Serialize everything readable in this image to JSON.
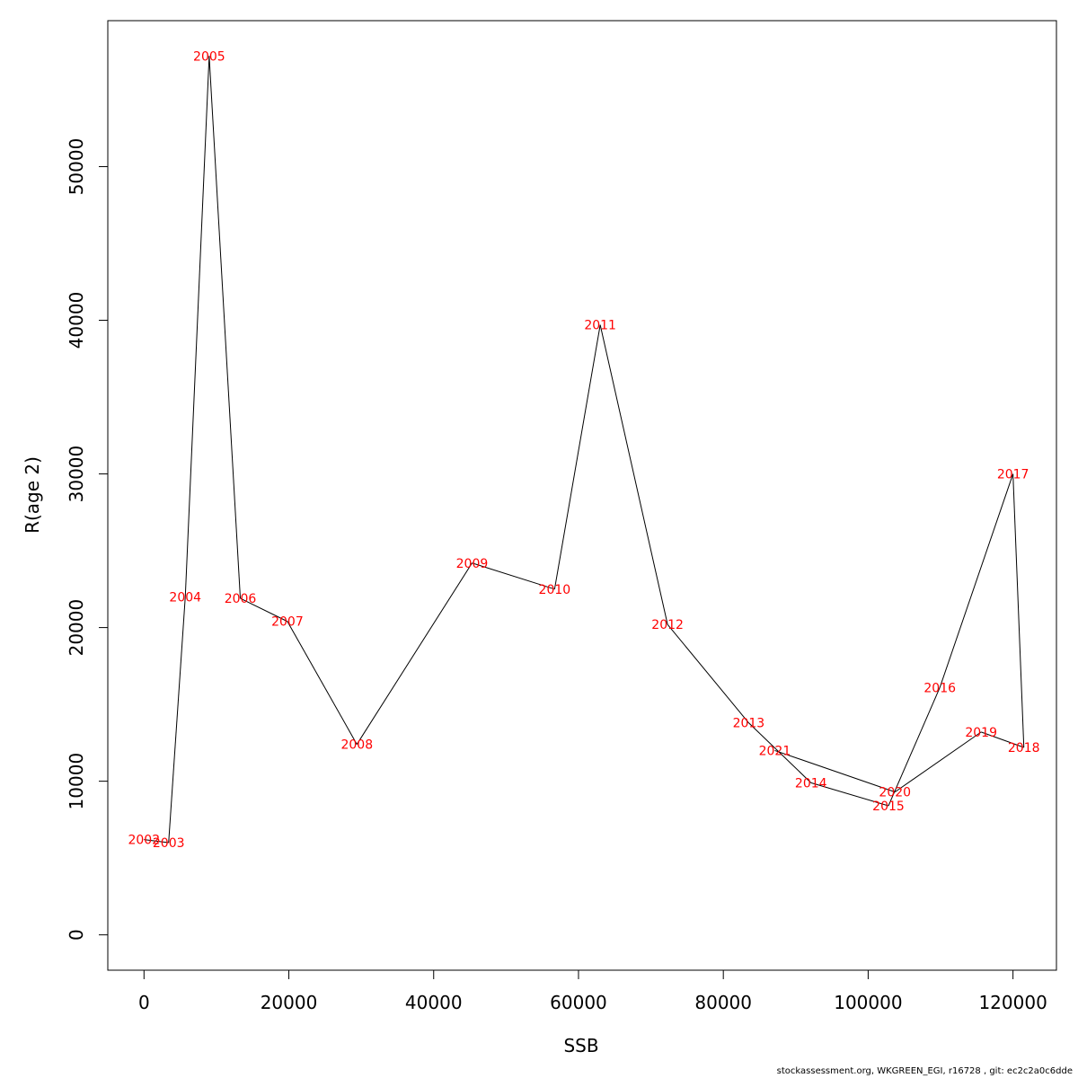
{
  "chart_data": {
    "type": "line",
    "xlabel": "SSB",
    "ylabel": "R(age 2)",
    "xlim": [
      -5000,
      126000
    ],
    "ylim": [
      -2300,
      59500
    ],
    "x_ticks": [
      0,
      20000,
      40000,
      60000,
      80000,
      100000,
      120000
    ],
    "y_ticks": [
      0,
      10000,
      20000,
      30000,
      40000,
      50000
    ],
    "line_color": "#000000",
    "label_color": "#ff0000",
    "points": [
      {
        "label": "2002",
        "x": 0,
        "y": 6200
      },
      {
        "label": "2003",
        "x": 3400,
        "y": 6000
      },
      {
        "label": "2004",
        "x": 5700,
        "y": 22000
      },
      {
        "label": "2005",
        "x": 9000,
        "y": 57200
      },
      {
        "label": "2006",
        "x": 13300,
        "y": 21900
      },
      {
        "label": "2007",
        "x": 19800,
        "y": 20400
      },
      {
        "label": "2008",
        "x": 29400,
        "y": 12400
      },
      {
        "label": "2009",
        "x": 45300,
        "y": 24200
      },
      {
        "label": "2010",
        "x": 56700,
        "y": 22500
      },
      {
        "label": "2011",
        "x": 63000,
        "y": 39700
      },
      {
        "label": "2012",
        "x": 72300,
        "y": 20200
      },
      {
        "label": "2013",
        "x": 83500,
        "y": 13800
      },
      {
        "label": "2014",
        "x": 92100,
        "y": 9900
      },
      {
        "label": "2015",
        "x": 102800,
        "y": 8400
      },
      {
        "label": "2016",
        "x": 109900,
        "y": 16100
      },
      {
        "label": "2017",
        "x": 120000,
        "y": 30000
      },
      {
        "label": "2018",
        "x": 121500,
        "y": 12200
      },
      {
        "label": "2019",
        "x": 115600,
        "y": 13200
      },
      {
        "label": "2020",
        "x": 103700,
        "y": 9300
      },
      {
        "label": "2021",
        "x": 87100,
        "y": 12000
      }
    ]
  },
  "footer_text": "stockassessment.org, WKGREEN_EGI, r16728 , git: ec2c2a0c6dde"
}
